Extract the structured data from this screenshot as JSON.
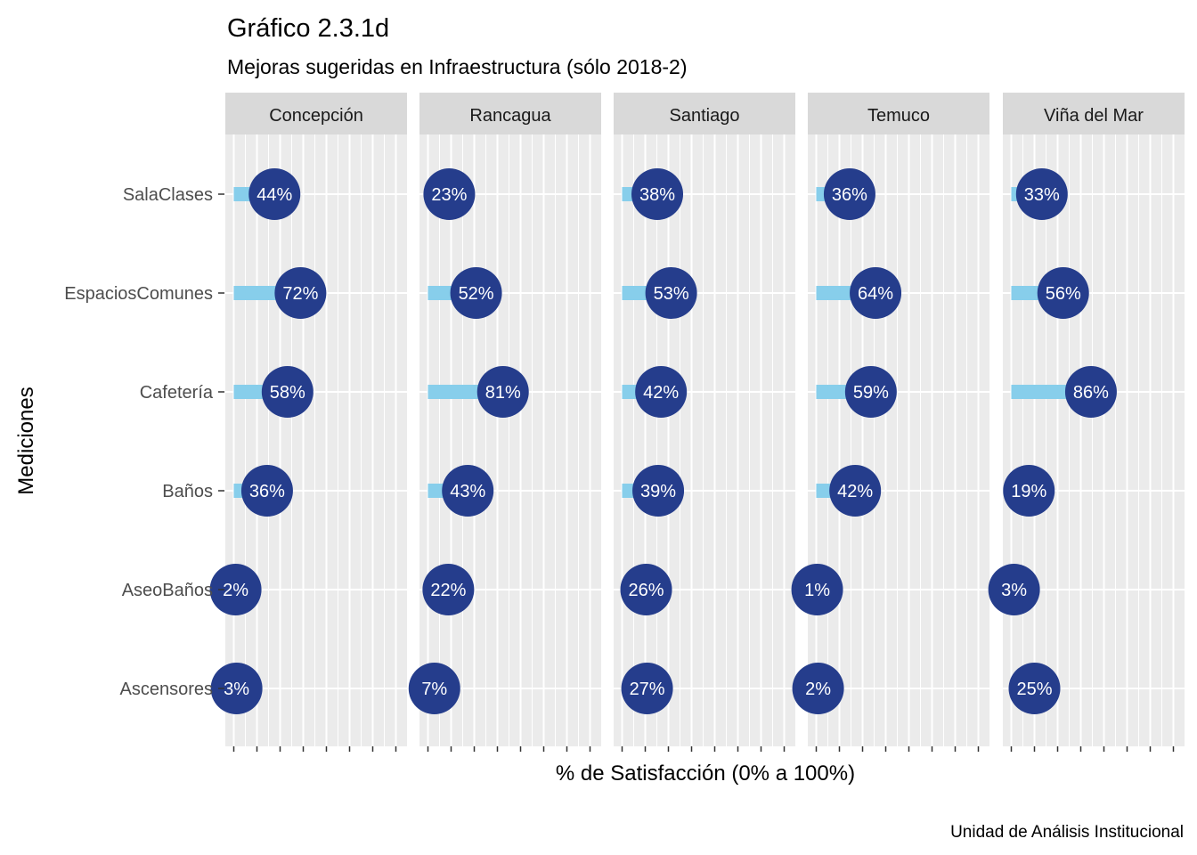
{
  "chart_data": {
    "type": "lollipop",
    "title": "Gráfico 2.3.1d",
    "subtitle": "Mejoras sugeridas en Infraestructura (sólo 2018-2)",
    "xlabel": "% de Satisfacción (0% a 100%)",
    "ylabel": "Mediciones",
    "caption": "Unidad de Análisis Institucional",
    "xlim": [
      0,
      100
    ],
    "grid": true,
    "categories": [
      "SalaClases",
      "EspaciosComunes",
      "Cafetería",
      "Baños",
      "AseoBaños",
      "Ascensores"
    ],
    "panels": [
      {
        "name": "Concepción",
        "values": [
          44,
          72,
          58,
          36,
          2,
          3
        ]
      },
      {
        "name": "Rancagua",
        "values": [
          23,
          52,
          81,
          43,
          22,
          7
        ]
      },
      {
        "name": "Santiago",
        "values": [
          38,
          53,
          42,
          39,
          26,
          27
        ]
      },
      {
        "name": "Temuco",
        "values": [
          36,
          64,
          59,
          42,
          1,
          2
        ]
      },
      {
        "name": "Viña del Mar",
        "values": [
          33,
          56,
          86,
          19,
          3,
          25
        ]
      }
    ],
    "colors": {
      "segment": "#87ceeb",
      "point": "#253d8c",
      "label": "#ffffff",
      "panel_bg": "#ebebeb",
      "strip_bg": "#d9d9d9",
      "grid": "#ffffff"
    }
  }
}
